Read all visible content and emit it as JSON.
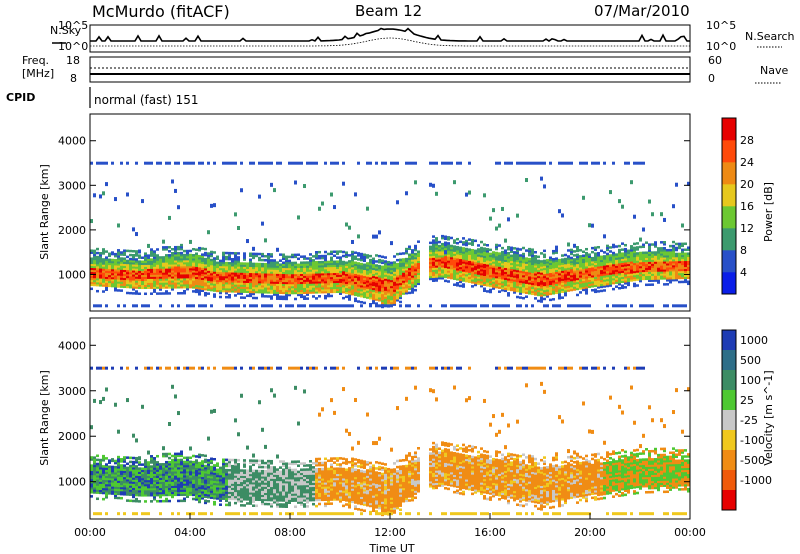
{
  "header": {
    "title_left": "McMurdo (fitACF)",
    "title_center": "Beam 12",
    "title_right": "07/Mar/2010"
  },
  "top_panels": {
    "nsky_label": "N.Sky",
    "nsearch_label": "N.Search",
    "noise_tick_high": "10^5",
    "noise_tick_low": "10^0",
    "freq_label_1": "Freq.",
    "freq_label_2": "[MHz]",
    "freq_tick_high": "18",
    "freq_tick_low": "8",
    "nave_label": "Nave",
    "nave_tick_high": "60",
    "nave_tick_low": "0",
    "cpid_label": "CPID",
    "cpid_text": "normal (fast) 151"
  },
  "chart_data": [
    {
      "type": "heatmap",
      "title": "",
      "ylabel": "Slant Range [km]",
      "xlabel": "",
      "ylim": [
        180,
        4600
      ],
      "y_ticks": [
        "1000",
        "2000",
        "3000",
        "4000"
      ],
      "colorbar": {
        "label": "Power [dB]",
        "ticks": [
          "4",
          "8",
          "12",
          "16",
          "20",
          "24",
          "28"
        ],
        "colors": [
          "#0a1ee8",
          "#2850c8",
          "#3c9a6e",
          "#6cc832",
          "#e6c81e",
          "#ee8a14",
          "#ff4a0a",
          "#e60000"
        ]
      },
      "main_echo_band_km": [
        [
          0,
          1050,
          260
        ],
        [
          2,
          1000,
          280
        ],
        [
          4,
          1080,
          350
        ],
        [
          5,
          950,
          300
        ],
        [
          8,
          900,
          300
        ],
        [
          10,
          950,
          320
        ],
        [
          12,
          750,
          380
        ],
        [
          13.3,
          1250,
          300
        ],
        [
          14,
          1300,
          320
        ],
        [
          16,
          1100,
          350
        ],
        [
          18,
          900,
          360
        ],
        [
          20,
          1050,
          300
        ],
        [
          22,
          1200,
          280
        ],
        [
          24,
          1200,
          250
        ]
      ]
    },
    {
      "type": "heatmap",
      "title": "",
      "ylabel": "Slant Range [km]",
      "xlabel": "Time UT",
      "ylim": [
        180,
        4600
      ],
      "y_ticks": [
        "1000",
        "2000",
        "3000",
        "4000"
      ],
      "x_ticks": [
        "00:00",
        "04:00",
        "08:00",
        "12:00",
        "16:00",
        "20:00",
        "00:00"
      ],
      "colorbar": {
        "label": "Velocity [m s^-1]",
        "ticks": [
          "1000",
          "500",
          "100",
          "25",
          "-25",
          "-100",
          "-500",
          "-1000"
        ],
        "colors": [
          "#1e3cb4",
          "#2e6e88",
          "#3c8c64",
          "#4ec832",
          "#c8c8c8",
          "#f0c81e",
          "#f08c14",
          "#f05a0a",
          "#e60000"
        ]
      }
    }
  ]
}
